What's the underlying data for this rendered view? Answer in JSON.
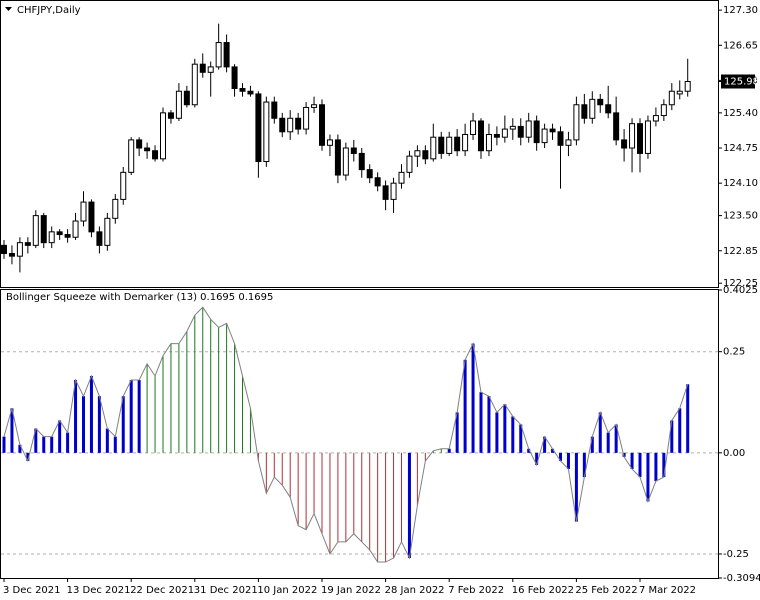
{
  "chart_data": [
    {
      "type": "candlestick",
      "title": "CHFJPY,Daily",
      "open": [
        122.95,
        122.8,
        122.75,
        123.0,
        122.95,
        123.5,
        123.0,
        123.2,
        123.15,
        123.1,
        123.4,
        123.75,
        123.2,
        122.95,
        123.45,
        123.8,
        124.3,
        124.9,
        124.75,
        124.7,
        124.55,
        125.4,
        125.3,
        125.8,
        125.55,
        126.3,
        126.15,
        126.25,
        126.7,
        126.25,
        125.85,
        125.8,
        125.75,
        124.5,
        125.6,
        125.3,
        125.05,
        125.3,
        125.1,
        125.5,
        125.55,
        124.8,
        124.9,
        124.25,
        124.75,
        124.65,
        124.35,
        124.2,
        124.05,
        123.8,
        124.1,
        124.3,
        124.6,
        124.7,
        124.55,
        124.95,
        124.65,
        124.95,
        124.7,
        125.0,
        125.25,
        124.7,
        125.0,
        124.95,
        125.1,
        125.15,
        124.95,
        125.25,
        124.85,
        125.1,
        125.05,
        124.8,
        124.9,
        125.55,
        125.3,
        125.65,
        125.55,
        125.4,
        124.9,
        124.75,
        125.2,
        124.65,
        125.25,
        125.35,
        125.55,
        125.75,
        125.8
      ],
      "high": [
        123.05,
        122.95,
        123.1,
        123.1,
        123.6,
        123.55,
        123.3,
        123.25,
        123.25,
        123.55,
        123.95,
        123.8,
        123.3,
        123.55,
        123.9,
        124.4,
        124.95,
        124.95,
        124.85,
        124.8,
        125.5,
        125.45,
        125.95,
        125.9,
        126.4,
        126.5,
        126.35,
        127.05,
        126.85,
        126.3,
        125.95,
        125.9,
        125.8,
        125.7,
        125.7,
        125.4,
        125.45,
        125.4,
        125.6,
        125.7,
        125.65,
        125.0,
        125.0,
        124.85,
        124.9,
        124.75,
        124.45,
        124.3,
        124.15,
        124.2,
        124.45,
        124.7,
        124.8,
        124.8,
        125.2,
        125.05,
        125.05,
        125.1,
        125.2,
        125.4,
        125.3,
        125.2,
        125.15,
        125.35,
        125.3,
        125.3,
        125.4,
        125.35,
        125.2,
        125.2,
        125.15,
        125.05,
        125.7,
        125.75,
        125.8,
        125.75,
        125.9,
        125.7,
        125.1,
        125.3,
        125.3,
        125.35,
        125.5,
        125.65,
        125.95,
        126.0,
        126.4
      ],
      "low": [
        122.7,
        122.6,
        122.45,
        122.8,
        122.9,
        122.9,
        122.9,
        123.05,
        123.0,
        123.05,
        123.3,
        123.1,
        122.8,
        122.85,
        123.35,
        123.7,
        124.25,
        124.6,
        124.55,
        124.5,
        124.5,
        125.2,
        125.25,
        125.5,
        125.5,
        126.05,
        125.7,
        126.2,
        126.15,
        125.7,
        125.7,
        125.7,
        124.2,
        124.4,
        125.2,
        124.95,
        124.9,
        125.0,
        125.0,
        125.4,
        124.7,
        124.6,
        124.1,
        124.15,
        124.5,
        124.2,
        124.1,
        123.95,
        123.6,
        123.55,
        124.0,
        124.2,
        124.4,
        124.45,
        124.5,
        124.55,
        124.6,
        124.6,
        124.6,
        124.9,
        124.55,
        124.6,
        124.8,
        124.85,
        124.9,
        124.8,
        124.85,
        124.7,
        124.75,
        124.9,
        124.0,
        124.6,
        124.8,
        125.2,
        125.2,
        125.4,
        125.3,
        124.8,
        124.5,
        124.3,
        124.3,
        124.55,
        125.15,
        125.25,
        125.45,
        125.65,
        125.7
      ],
      "close": [
        122.8,
        122.75,
        123.0,
        122.95,
        123.5,
        123.0,
        123.2,
        123.15,
        123.1,
        123.4,
        123.75,
        123.2,
        122.95,
        123.45,
        123.8,
        124.3,
        124.9,
        124.75,
        124.7,
        124.55,
        125.4,
        125.3,
        125.8,
        125.55,
        126.3,
        126.15,
        126.25,
        126.7,
        126.25,
        125.85,
        125.8,
        125.75,
        124.5,
        125.6,
        125.3,
        125.05,
        125.3,
        125.1,
        125.5,
        125.55,
        124.8,
        124.9,
        124.25,
        124.75,
        124.65,
        124.35,
        124.2,
        124.05,
        123.8,
        124.1,
        124.3,
        124.6,
        124.7,
        124.55,
        124.95,
        124.65,
        124.95,
        124.7,
        125.0,
        125.25,
        124.7,
        125.0,
        124.95,
        125.1,
        125.15,
        124.95,
        125.25,
        124.85,
        125.1,
        125.05,
        124.8,
        124.9,
        125.55,
        125.3,
        125.65,
        125.55,
        125.4,
        124.9,
        124.75,
        125.2,
        124.65,
        125.25,
        125.35,
        125.55,
        125.8,
        125.8,
        125.98
      ],
      "last_price": 125.98,
      "ylim": [
        122.18,
        127.45
      ],
      "yticks": [
        {
          "value": 127.3,
          "label": "127.30"
        },
        126.65,
        {
          "value": 126,
          "label": "126.00"
        },
        {
          "value": 125.4,
          "label": "125.40"
        },
        124.75,
        {
          "value": 124.1,
          "label": "124.10"
        },
        {
          "value": 123.5,
          "label": "123.50"
        },
        122.85,
        122.25
      ]
    },
    {
      "type": "bar",
      "title": "Bollinger Squeeze with Demarker (13) 0.1695 0.1695",
      "categories": [
        "3 Dec 2021",
        null,
        null,
        null,
        null,
        null,
        null,
        null,
        "13 Dec 2021",
        null,
        null,
        null,
        null,
        null,
        null,
        null,
        "22 Dec 2021",
        null,
        null,
        null,
        null,
        null,
        null,
        null,
        "31 Dec 2021",
        null,
        null,
        null,
        null,
        null,
        null,
        null,
        "10 Jan 2022",
        null,
        null,
        null,
        null,
        null,
        null,
        null,
        "19 Jan 2022",
        null,
        null,
        null,
        null,
        null,
        null,
        null,
        "28 Jan 2022",
        null,
        null,
        null,
        null,
        null,
        null,
        null,
        "7 Feb 2022",
        null,
        null,
        null,
        null,
        null,
        null,
        null,
        "16 Feb 2022",
        null,
        null,
        null,
        null,
        null,
        null,
        null,
        "25 Feb 2022",
        null,
        null,
        null,
        null,
        null,
        null,
        null,
        "7 Mar 2022",
        null,
        null,
        null,
        null,
        null,
        null
      ],
      "values": [
        0.04,
        0.11,
        0.02,
        -0.02,
        0.06,
        0.04,
        0.04,
        0.08,
        0.05,
        0.18,
        0.14,
        0.19,
        0.14,
        0.06,
        0.04,
        0.14,
        0.18,
        0.18,
        0.22,
        0.19,
        0.24,
        0.27,
        0.27,
        0.3,
        0.34,
        0.36,
        0.33,
        0.31,
        0.32,
        0.27,
        0.19,
        0.11,
        -0.02,
        -0.1,
        -0.06,
        -0.08,
        -0.11,
        -0.18,
        -0.19,
        -0.15,
        -0.2,
        -0.25,
        -0.22,
        -0.22,
        -0.2,
        -0.22,
        -0.24,
        -0.27,
        -0.27,
        -0.26,
        -0.22,
        -0.26,
        -0.13,
        -0.02,
        0.005,
        0.01,
        0.01,
        0.1,
        0.23,
        0.27,
        0.15,
        0.14,
        0.1,
        0.12,
        0.09,
        0.07,
        0.01,
        -0.03,
        0.04,
        0.01,
        -0.02,
        -0.04,
        -0.17,
        -0.06,
        0.04,
        0.1,
        0.05,
        0.07,
        -0.01,
        -0.04,
        -0.06,
        -0.12,
        -0.07,
        -0.06,
        0.08,
        0.11,
        0.1695
      ],
      "bar_colors": [
        "#0000cc",
        "#0000cc",
        "#0000cc",
        "#0000cc",
        "#0000cc",
        "#0000cc",
        "#0000cc",
        "#0000cc",
        "#0000cc",
        "#0000cc",
        "#0000cc",
        "#0000cc",
        "#0000cc",
        "#0000cc",
        "#0000cc",
        "#0000cc",
        "#0000cc",
        "#0000cc",
        "#1a7a1a",
        "#1a7a1a",
        "#1a7a1a",
        "#1a7a1a",
        "#1a7a1a",
        "#1a7a1a",
        "#1a7a1a",
        "#1a7a1a",
        "#1a7a1a",
        "#1a7a1a",
        "#1a7a1a",
        "#1a7a1a",
        "#1a7a1a",
        "#1a7a1a",
        "#b03030",
        "#b03030",
        "#b03030",
        "#b03030",
        "#b03030",
        "#b03030",
        "#b03030",
        "#b03030",
        "#b03030",
        "#b03030",
        "#b03030",
        "#b03030",
        "#b03030",
        "#b03030",
        "#b03030",
        "#b03030",
        "#b03030",
        "#b03030",
        "#b03030",
        "#0000cc",
        "#b03030",
        "#b03030",
        "#1a7a1a",
        "#1a7a1a",
        "#0000cc",
        "#0000cc",
        "#0000cc",
        "#0000cc",
        "#0000cc",
        "#0000cc",
        "#0000cc",
        "#0000cc",
        "#0000cc",
        "#0000cc",
        "#0000cc",
        "#0000cc",
        "#0000cc",
        "#0000cc",
        "#0000cc",
        "#0000cc",
        "#0000cc",
        "#0000cc",
        "#0000cc",
        "#0000cc",
        "#0000cc",
        "#0000cc",
        "#0000cc",
        "#0000cc",
        "#0000cc",
        "#0000cc",
        "#0000cc",
        "#0000cc",
        "#0000cc",
        "#0000cc",
        "#0000cc"
      ],
      "line_color": "#808080",
      "ylim": [
        -0.3094,
        0.4025
      ],
      "yticks": [
        0.4025,
        0.25,
        {
          "value": 0,
          "label": "0.00"
        },
        -0.25,
        -0.3094
      ]
    }
  ]
}
